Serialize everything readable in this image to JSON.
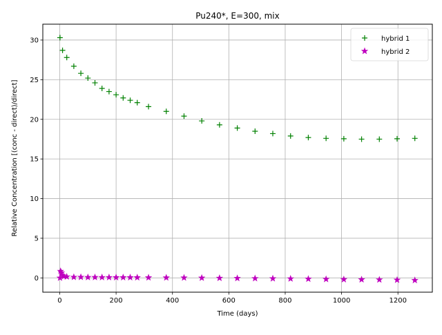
{
  "chart_data": {
    "type": "scatter",
    "title": "Pu240*, E=300, mix",
    "xlabel": "Time (days)",
    "ylabel": "Relative Concentration [(conc - direct)/direct]",
    "xlim": [
      -60,
      1322
    ],
    "ylim": [
      -1.8,
      32
    ],
    "xticks": [
      0,
      200,
      400,
      600,
      800,
      1000,
      1200
    ],
    "yticks": [
      0,
      5,
      10,
      15,
      20,
      25,
      30
    ],
    "grid": true,
    "legend_position": "top-right",
    "series": [
      {
        "name": "hybrid 1",
        "marker": "plus",
        "color": "#008000",
        "x": [
          1,
          10,
          25,
          50,
          75,
          100,
          125,
          150,
          175,
          200,
          225,
          250,
          275,
          315,
          378,
          441,
          504,
          567,
          630,
          693,
          756,
          819,
          882,
          945,
          1008,
          1071,
          1134,
          1197,
          1260
        ],
        "y": [
          30.3,
          28.7,
          27.8,
          26.7,
          25.8,
          25.2,
          24.6,
          23.9,
          23.5,
          23.1,
          22.7,
          22.4,
          22.1,
          21.6,
          21.0,
          20.4,
          19.8,
          19.3,
          18.9,
          18.5,
          18.2,
          17.9,
          17.7,
          17.6,
          17.55,
          17.5,
          17.5,
          17.55,
          17.6
        ]
      },
      {
        "name": "hybrid 2",
        "marker": "star",
        "color": "#bf00bf",
        "x": [
          1,
          3,
          6,
          10,
          15,
          25,
          50,
          75,
          100,
          125,
          150,
          175,
          200,
          225,
          250,
          275,
          315,
          378,
          441,
          504,
          567,
          630,
          693,
          756,
          819,
          882,
          945,
          1008,
          1071,
          1134,
          1197,
          1260
        ],
        "y": [
          0.0,
          0.85,
          0.65,
          0.3,
          0.2,
          0.15,
          0.1,
          0.1,
          0.08,
          0.08,
          0.07,
          0.07,
          0.06,
          0.06,
          0.06,
          0.05,
          0.04,
          0.03,
          0.02,
          0.0,
          -0.02,
          -0.04,
          -0.06,
          -0.08,
          -0.1,
          -0.13,
          -0.16,
          -0.19,
          -0.21,
          -0.23,
          -0.26,
          -0.3
        ]
      }
    ]
  }
}
